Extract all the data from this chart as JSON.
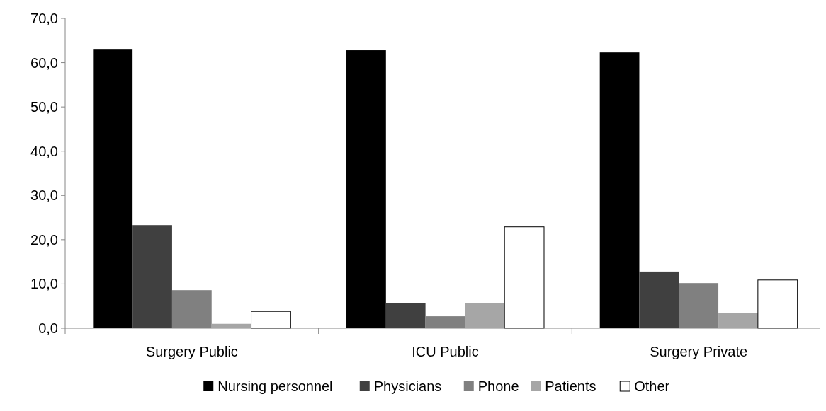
{
  "chart_data": {
    "type": "bar",
    "categories": [
      "Surgery Public",
      "ICU Public",
      "Surgery Private"
    ],
    "series": [
      {
        "name": "Nursing personnel",
        "color": "#000000",
        "values": [
          63.1,
          62.8,
          62.3
        ]
      },
      {
        "name": "Physicians",
        "color": "#404040",
        "values": [
          23.3,
          5.6,
          12.8
        ]
      },
      {
        "name": "Phone",
        "color": "#808080",
        "values": [
          8.6,
          2.7,
          10.2
        ]
      },
      {
        "name": "Patients",
        "color": "#a6a6a6",
        "values": [
          1.0,
          5.6,
          3.4
        ]
      },
      {
        "name": "Other",
        "color": "#ffffff",
        "values": [
          3.8,
          22.9,
          10.9
        ]
      }
    ],
    "ylim": [
      0,
      70
    ],
    "yticks": [
      {
        "value": 0,
        "label": "0,0"
      },
      {
        "value": 10,
        "label": "10,0"
      },
      {
        "value": 20,
        "label": "20,0"
      },
      {
        "value": 30,
        "label": "30,0"
      },
      {
        "value": 40,
        "label": "40,0"
      },
      {
        "value": 50,
        "label": "50,0"
      },
      {
        "value": 60,
        "label": "60,0"
      },
      {
        "value": 70,
        "label": "70,0"
      }
    ],
    "grid": false,
    "legend": "bottom"
  }
}
